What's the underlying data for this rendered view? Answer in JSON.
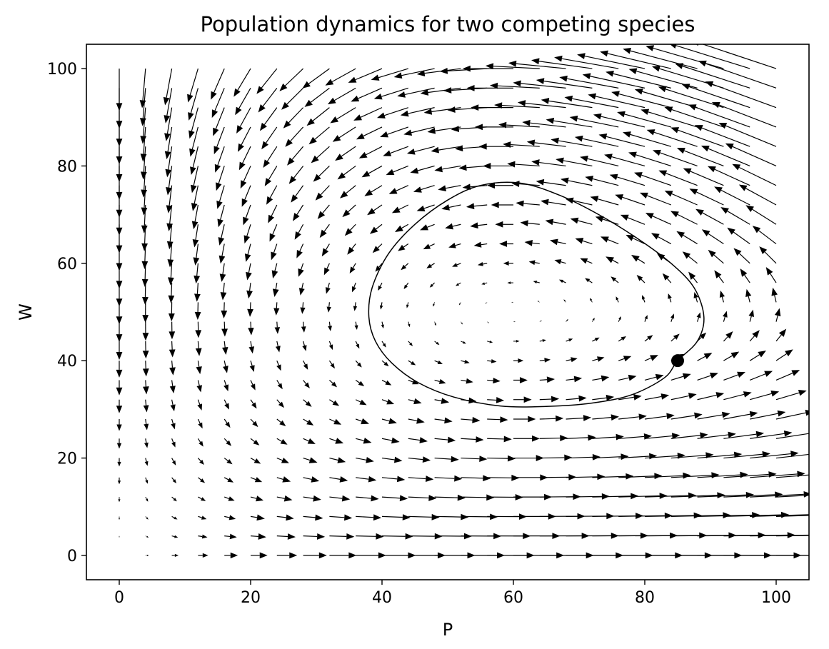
{
  "chart_data": {
    "type": "quiver",
    "title": "Population dynamics for two competing species",
    "xlabel": "P",
    "ylabel": "W",
    "xlim": [
      -5,
      105
    ],
    "ylim": [
      -5,
      105
    ],
    "xticks": [
      0,
      20,
      40,
      60,
      80,
      100
    ],
    "yticks": [
      0,
      20,
      40,
      60,
      80,
      100
    ],
    "grid": false,
    "vector_field": {
      "model": "dP/dt = 0.02*P*(1 - W/50); dW/dt = -0.01*W*(1 - P/60)",
      "x_start": 0,
      "x_stop": 100,
      "x_count": 26,
      "y_start": 0,
      "y_stop": 100,
      "y_count": 26,
      "equilibrium": [
        60,
        50
      ]
    },
    "trajectory": {
      "points": [
        [
          85,
          40
        ],
        [
          88,
          44
        ],
        [
          89,
          49
        ],
        [
          87.5,
          55
        ],
        [
          84,
          60
        ],
        [
          79,
          65
        ],
        [
          73,
          70
        ],
        [
          67,
          74
        ],
        [
          61,
          76.5
        ],
        [
          55,
          76
        ],
        [
          50,
          73
        ],
        [
          45,
          68
        ],
        [
          41,
          62
        ],
        [
          38.5,
          55
        ],
        [
          38,
          49
        ],
        [
          39,
          44
        ],
        [
          41.5,
          39.5
        ],
        [
          45.5,
          35.5
        ],
        [
          51,
          32.5
        ],
        [
          58,
          30.7
        ],
        [
          65,
          30.6
        ],
        [
          72,
          31.3
        ],
        [
          78,
          33
        ],
        [
          83,
          36.5
        ],
        [
          85,
          40
        ]
      ]
    },
    "marker": {
      "x": 85,
      "y": 40
    },
    "color": "#000000"
  }
}
